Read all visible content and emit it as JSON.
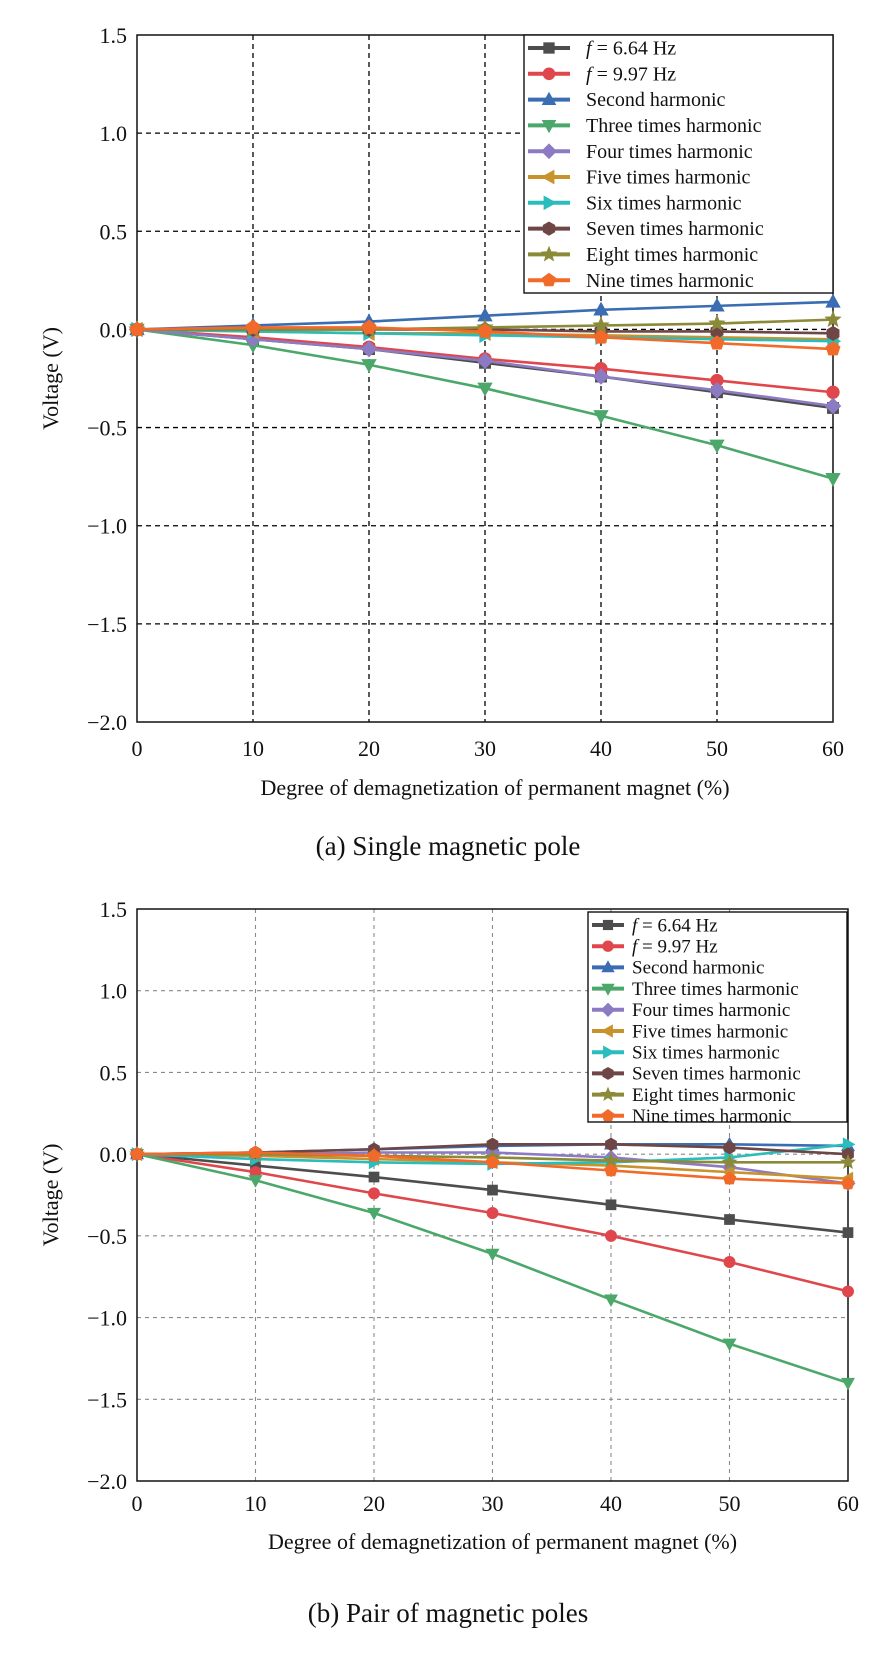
{
  "figure": {
    "captions": [
      "(a) Single magnetic pole",
      "(b) Pair of magnetic poles"
    ]
  },
  "chart_data": [
    {
      "type": "line",
      "caption": "(a) Single magnetic pole",
      "xlabel": "Degree of demagnetization of permanent magnet (%)",
      "ylabel": "Voltage (V)",
      "xlim": [
        0,
        60
      ],
      "ylim": [
        -2.0,
        1.5
      ],
      "xticks": [
        0,
        10,
        20,
        30,
        40,
        50,
        60
      ],
      "yticks": [
        -2.0,
        -1.5,
        -1.0,
        -0.5,
        0.0,
        0.5,
        1.0,
        1.5
      ],
      "ytick_labels": [
        "−2.0",
        "−1.5",
        "−1.0",
        "−0.5",
        "0.0",
        "0.5",
        "1.0",
        "1.5"
      ],
      "grid": "dashed-black",
      "legend_position": "top-right",
      "x": [
        0,
        10,
        20,
        30,
        40,
        50,
        60
      ],
      "series": [
        {
          "name": "f = 6.64 Hz",
          "italic_prefix": "f",
          "rest": " = 6.64 Hz",
          "color": "#4d4d4d",
          "marker": "square",
          "values": [
            0,
            -0.05,
            -0.1,
            -0.17,
            -0.24,
            -0.32,
            -0.4
          ]
        },
        {
          "name": "f = 9.97 Hz",
          "italic_prefix": "f",
          "rest": " = 9.97 Hz",
          "color": "#e0474c",
          "marker": "circle",
          "values": [
            0,
            -0.04,
            -0.09,
            -0.15,
            -0.2,
            -0.26,
            -0.32
          ]
        },
        {
          "name": "Second harmonic",
          "color": "#3b6db3",
          "marker": "triangle-up",
          "values": [
            0,
            0.02,
            0.04,
            0.07,
            0.1,
            0.12,
            0.14
          ]
        },
        {
          "name": "Three times harmonic",
          "color": "#4ca86a",
          "marker": "triangle-down",
          "values": [
            0,
            -0.08,
            -0.18,
            -0.3,
            -0.44,
            -0.59,
            -0.76
          ]
        },
        {
          "name": "Four times harmonic",
          "color": "#8c7bc2",
          "marker": "diamond",
          "values": [
            0,
            -0.05,
            -0.1,
            -0.16,
            -0.24,
            -0.31,
            -0.39
          ]
        },
        {
          "name": "Five times harmonic",
          "color": "#c8922c",
          "marker": "triangle-left",
          "values": [
            0,
            -0.01,
            -0.02,
            -0.02,
            -0.03,
            -0.04,
            -0.05
          ]
        },
        {
          "name": "Six times harmonic",
          "color": "#2bbcbc",
          "marker": "triangle-right",
          "values": [
            0,
            -0.01,
            -0.02,
            -0.03,
            -0.04,
            -0.05,
            -0.06
          ]
        },
        {
          "name": "Seven times harmonic",
          "color": "#6e4646",
          "marker": "hexagon",
          "values": [
            0,
            0.0,
            0.0,
            0.0,
            -0.01,
            -0.01,
            -0.02
          ]
        },
        {
          "name": "Eight times harmonic",
          "color": "#8a8a38",
          "marker": "star",
          "values": [
            0,
            0.0,
            0.0,
            0.01,
            0.02,
            0.03,
            0.05
          ]
        },
        {
          "name": "Nine times harmonic",
          "color": "#f26a2a",
          "marker": "pentagon",
          "values": [
            0,
            0.01,
            0.01,
            -0.01,
            -0.04,
            -0.07,
            -0.1
          ]
        }
      ]
    },
    {
      "type": "line",
      "caption": "(b) Pair of magnetic poles",
      "xlabel": "Degree of demagnetization of permanent magnet (%)",
      "ylabel": "Voltage (V)",
      "xlim": [
        0,
        60
      ],
      "ylim": [
        -2.0,
        1.5
      ],
      "xticks": [
        0,
        10,
        20,
        30,
        40,
        50,
        60
      ],
      "yticks": [
        -2.0,
        -1.5,
        -1.0,
        -0.5,
        0.0,
        0.5,
        1.0,
        1.5
      ],
      "ytick_labels": [
        "−2.0",
        "−1.5",
        "−1.0",
        "−0.5",
        "0.0",
        "0.5",
        "1.0",
        "1.5"
      ],
      "grid": "dashed-gray",
      "legend_position": "top-right",
      "x": [
        0,
        10,
        20,
        30,
        40,
        50,
        60
      ],
      "series": [
        {
          "name": "f = 6.64 Hz",
          "italic_prefix": "f",
          "rest": " = 6.64 Hz",
          "color": "#4d4d4d",
          "marker": "square",
          "values": [
            0,
            -0.07,
            -0.14,
            -0.22,
            -0.31,
            -0.4,
            -0.48
          ]
        },
        {
          "name": "f = 9.97 Hz",
          "italic_prefix": "f",
          "rest": " = 9.97 Hz",
          "color": "#e0474c",
          "marker": "circle",
          "values": [
            0,
            -0.11,
            -0.24,
            -0.36,
            -0.5,
            -0.66,
            -0.84
          ]
        },
        {
          "name": "Second harmonic",
          "color": "#3b6db3",
          "marker": "triangle-up",
          "values": [
            0,
            0.01,
            0.03,
            0.05,
            0.06,
            0.06,
            0.05
          ]
        },
        {
          "name": "Three times harmonic",
          "color": "#4ca86a",
          "marker": "triangle-down",
          "values": [
            0,
            -0.16,
            -0.36,
            -0.61,
            -0.89,
            -1.16,
            -1.4
          ]
        },
        {
          "name": "Four times harmonic",
          "color": "#8c7bc2",
          "marker": "diamond",
          "values": [
            0,
            0.0,
            0.01,
            0.01,
            -0.02,
            -0.08,
            -0.18
          ]
        },
        {
          "name": "Five times harmonic",
          "color": "#c8922c",
          "marker": "triangle-left",
          "values": [
            0,
            -0.01,
            -0.03,
            -0.05,
            -0.07,
            -0.11,
            -0.15
          ]
        },
        {
          "name": "Six times harmonic",
          "color": "#2bbcbc",
          "marker": "triangle-right",
          "values": [
            0,
            -0.03,
            -0.05,
            -0.06,
            -0.05,
            -0.02,
            0.06
          ]
        },
        {
          "name": "Seven times harmonic",
          "color": "#6e4646",
          "marker": "hexagon",
          "values": [
            0,
            0.01,
            0.03,
            0.06,
            0.06,
            0.04,
            0.0
          ]
        },
        {
          "name": "Eight times harmonic",
          "color": "#8a8a38",
          "marker": "star",
          "values": [
            0,
            0.0,
            -0.01,
            -0.02,
            -0.04,
            -0.05,
            -0.05
          ]
        },
        {
          "name": "Nine times harmonic",
          "color": "#f26a2a",
          "marker": "pentagon",
          "values": [
            0,
            0.01,
            -0.01,
            -0.05,
            -0.1,
            -0.15,
            -0.18
          ]
        }
      ]
    }
  ]
}
